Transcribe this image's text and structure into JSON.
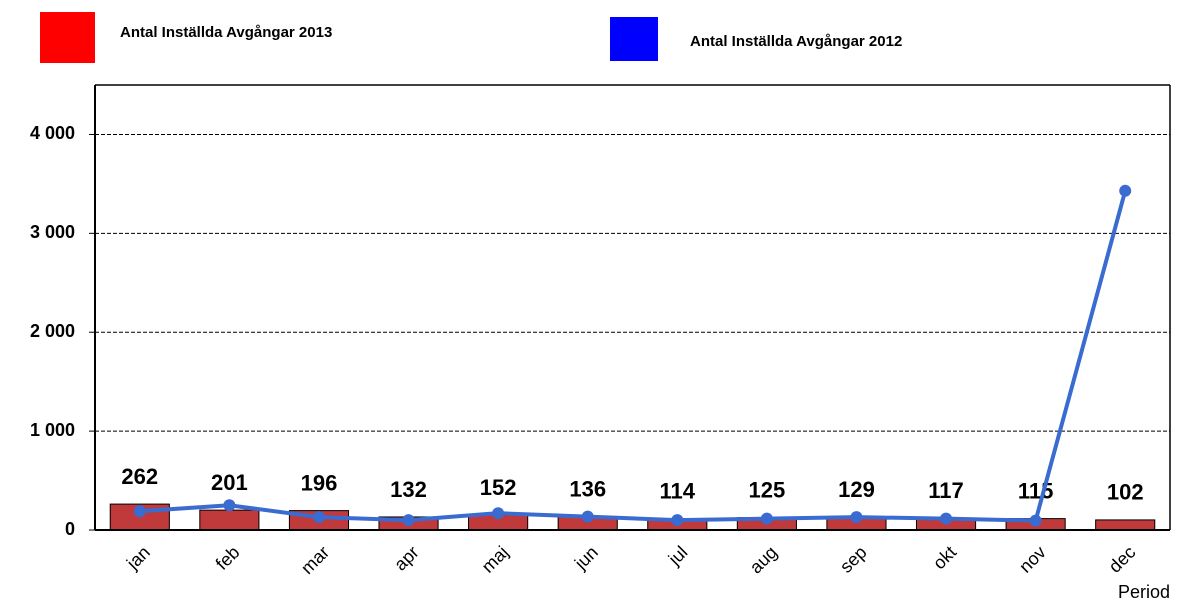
{
  "chart_data": {
    "type": "bar_line",
    "categories": [
      "jan",
      "feb",
      "mar",
      "apr",
      "maj",
      "jun",
      "jul",
      "aug",
      "sep",
      "okt",
      "nov",
      "dec"
    ],
    "x_label": "Period",
    "series": [
      {
        "name": "Antal Inställda Avgångar 2013",
        "kind": "bar",
        "color": "#c0393b",
        "legend_color": "#ff0000",
        "values": [
          262,
          201,
          196,
          132,
          152,
          136,
          114,
          125,
          129,
          117,
          115,
          102
        ]
      },
      {
        "name": "Antal Inställda Avgångar 2012",
        "kind": "line",
        "color": "#3a6bd0",
        "legend_color": "#0000ff",
        "values": [
          190,
          250,
          130,
          100,
          170,
          135,
          100,
          115,
          130,
          115,
          95,
          3430
        ]
      }
    ],
    "ylim": [
      0,
      4500
    ],
    "yticks": [
      0,
      {
        "value": 1000,
        "label": "1 000"
      },
      {
        "value": 2000,
        "label": "2 000"
      },
      {
        "value": 3000,
        "label": "3 000"
      },
      {
        "value": 4000,
        "label": "4 000"
      }
    ],
    "grid": true
  }
}
